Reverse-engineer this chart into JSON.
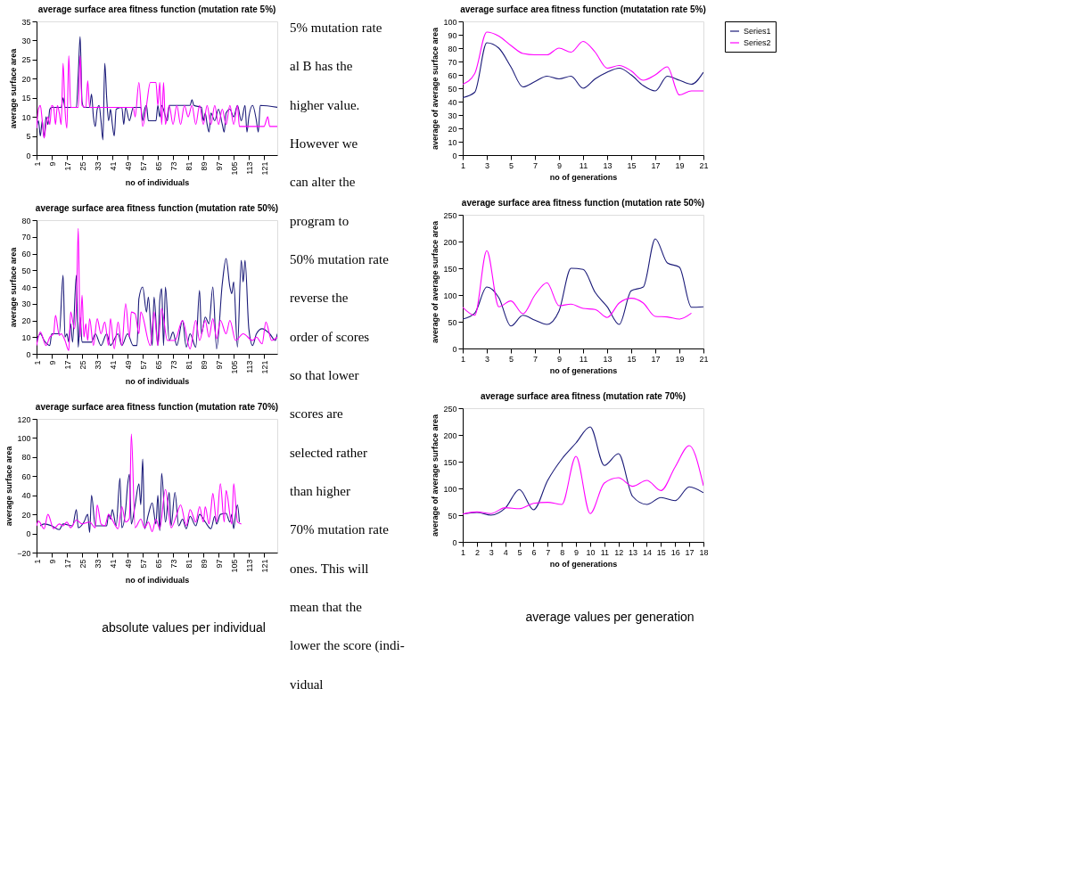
{
  "chart_data": [
    {
      "type": "line",
      "title": "average surface area fitness function (mutation rate 5%)",
      "xlabel": "no of individuals",
      "ylabel": "average surface area",
      "xlim": [
        1,
        128
      ],
      "xticks": [
        1,
        9,
        17,
        25,
        33,
        41,
        49,
        57,
        65,
        73,
        81,
        89,
        97,
        105,
        113,
        121
      ],
      "ylim": [
        0,
        35
      ],
      "yticks": [
        0,
        5,
        10,
        15,
        20,
        25,
        30,
        35
      ],
      "grid": false,
      "legend": "right",
      "series": [
        {
          "name": "Series1",
          "color": "#1a1a78",
          "x": [
            1,
            2,
            3,
            4,
            5,
            6,
            7,
            8,
            9,
            14,
            15,
            16,
            22,
            23,
            24,
            25,
            26,
            29,
            30,
            31,
            32,
            33,
            34,
            35,
            36,
            37,
            38,
            39,
            40,
            41,
            42,
            43,
            46,
            47,
            48,
            50,
            52,
            56,
            57,
            58,
            59,
            60,
            64,
            65,
            66,
            67,
            70,
            71,
            82,
            83,
            84,
            88,
            89,
            90,
            91,
            92,
            93,
            95,
            97,
            99,
            100,
            101,
            103,
            105,
            107,
            109,
            111,
            112,
            113,
            115,
            117,
            118,
            119,
            128
          ],
          "values": [
            7,
            9,
            5,
            9,
            4.5,
            10,
            8,
            12,
            12.5,
            12.5,
            15,
            12.5,
            12.5,
            21,
            31,
            14,
            12.5,
            12.5,
            16,
            10,
            7.5,
            12,
            13,
            9,
            4,
            24,
            15,
            9,
            12,
            8,
            5,
            12,
            12.5,
            8,
            12.5,
            9,
            12.5,
            12.5,
            9,
            12,
            13,
            9,
            9,
            13,
            10,
            13,
            9,
            13,
            13,
            14.5,
            13,
            12.5,
            9,
            11,
            8,
            6,
            11,
            9,
            12,
            8,
            6,
            11,
            12,
            10,
            13,
            9,
            13,
            6,
            10,
            13,
            9,
            6,
            13,
            12.5
          ]
        },
        {
          "name": "Series2",
          "color": "#ff00ff",
          "x": [
            1,
            2,
            3,
            4,
            5,
            6,
            7,
            8,
            9,
            10,
            11,
            12,
            13,
            14,
            15,
            16,
            17,
            18,
            19,
            23,
            24,
            25,
            27,
            28,
            29,
            52,
            53,
            55,
            57,
            59,
            61,
            64,
            65,
            66,
            67,
            68,
            69,
            71,
            73,
            75,
            77,
            79,
            81,
            83,
            85,
            87,
            89,
            91,
            93,
            95,
            97,
            99,
            101,
            103,
            105,
            107,
            108,
            121,
            123,
            124,
            128
          ],
          "values": [
            7,
            12,
            13,
            9,
            4.5,
            8,
            10,
            8,
            13,
            12.5,
            8,
            13,
            11,
            8,
            24,
            12,
            7,
            26,
            12.5,
            12.5,
            26,
            13,
            12.5,
            19.5,
            12.5,
            12.5,
            10,
            19,
            7.5,
            13,
            19,
            19,
            13,
            19,
            8,
            19,
            8,
            13,
            8,
            13,
            8,
            13,
            10,
            13,
            8,
            13,
            8,
            13,
            8,
            13,
            8,
            12,
            8,
            13,
            8,
            13,
            7.5,
            7.5,
            10,
            7.5,
            7.5
          ]
        }
      ]
    },
    {
      "type": "line",
      "title": "average surface area fitness function (mutatation rate 5%)",
      "xlabel": "no of generations",
      "ylabel": "average of average surface area",
      "x": [
        1,
        2,
        3,
        4,
        5,
        6,
        7,
        8,
        9,
        10,
        11,
        12,
        13,
        14,
        15,
        16,
        17,
        18,
        19,
        20,
        21
      ],
      "xlim": [
        1,
        21
      ],
      "xticks": [
        1,
        3,
        5,
        7,
        9,
        11,
        13,
        15,
        17,
        19,
        21
      ],
      "ylim": [
        0,
        100
      ],
      "yticks": [
        0,
        10,
        20,
        30,
        40,
        50,
        60,
        70,
        80,
        90,
        100
      ],
      "grid": false,
      "legend": "right",
      "series": [
        {
          "name": "Series1",
          "color": "#1a1a78",
          "values": [
            43,
            47,
            84,
            80,
            66,
            51,
            55,
            59,
            57,
            59,
            50,
            57,
            62,
            65,
            60,
            52,
            48,
            59,
            56,
            53,
            62
          ]
        },
        {
          "name": "Series2",
          "color": "#ff00ff",
          "values": [
            53,
            61,
            92,
            89,
            82,
            76,
            75,
            75,
            80,
            77,
            85,
            77,
            65,
            67,
            63,
            56,
            60,
            66,
            45,
            48,
            48
          ]
        }
      ]
    },
    {
      "type": "line",
      "title": "average surface area fitness function (mutation rate 50%)",
      "xlabel": "no of individuals",
      "ylabel": "average surface area",
      "xlim": [
        1,
        128
      ],
      "xticks": [
        1,
        9,
        17,
        25,
        33,
        41,
        49,
        57,
        65,
        73,
        81,
        89,
        97,
        105,
        113,
        121
      ],
      "ylim": [
        0,
        80
      ],
      "yticks": [
        0,
        10,
        20,
        30,
        40,
        50,
        60,
        70,
        80
      ],
      "grid": false,
      "legend": "right",
      "series": [
        {
          "name": "Series1",
          "color": "#1a1a78",
          "x": [
            1,
            3,
            5,
            8,
            9,
            13,
            15,
            16,
            17,
            18,
            19,
            20,
            22,
            23,
            24,
            25,
            30,
            32,
            35,
            38,
            40,
            44,
            46,
            49,
            52,
            54,
            55,
            57,
            59,
            60,
            62,
            63,
            65,
            66,
            67,
            68,
            69,
            71,
            73,
            75,
            78,
            80,
            82,
            85,
            87,
            88,
            90,
            92,
            94,
            96,
            99,
            101,
            103,
            104,
            105,
            107,
            109,
            110,
            111,
            113,
            115,
            117,
            120,
            124,
            127,
            128
          ],
          "values": [
            8,
            12,
            8,
            5,
            12,
            12,
            47,
            10,
            12,
            7,
            18,
            7,
            47,
            4,
            22,
            7,
            7,
            12,
            5,
            12,
            5,
            12,
            5,
            12,
            5,
            5,
            33,
            40,
            25,
            34,
            5,
            34,
            5,
            32,
            39,
            5,
            40,
            8,
            13,
            5,
            20,
            4,
            12,
            4,
            38,
            12,
            22,
            18,
            40,
            3,
            42,
            57,
            40,
            36,
            43,
            4,
            56,
            43,
            56,
            15,
            5,
            12,
            15,
            12,
            8,
            12
          ]
        },
        {
          "name": "Series2",
          "color": "#ff00ff",
          "x": [
            1,
            3,
            6,
            8,
            10,
            11,
            13,
            14,
            16,
            18,
            19,
            21,
            22,
            23,
            24,
            25,
            26,
            27,
            28,
            29,
            31,
            33,
            35,
            37,
            39,
            40,
            42,
            44,
            46,
            48,
            50,
            51,
            53,
            55,
            56,
            61,
            63,
            65,
            67,
            70,
            74,
            78,
            82,
            85,
            87,
            90,
            92,
            94,
            96,
            98,
            101,
            103,
            106,
            110,
            115,
            117,
            120,
            122,
            125,
            128
          ],
          "values": [
            5,
            13,
            5,
            10,
            12,
            23,
            11,
            12,
            8,
            2,
            25,
            15,
            28,
            75,
            10,
            35,
            10,
            18,
            8,
            21,
            5,
            21,
            12,
            19,
            5,
            21,
            3,
            19,
            5,
            30,
            10,
            25,
            24,
            12,
            25,
            5,
            25,
            5,
            27,
            8,
            8,
            20,
            3,
            20,
            8,
            20,
            10,
            21,
            9,
            20,
            12,
            20,
            8,
            12,
            8,
            10,
            6,
            19,
            8,
            10
          ]
        }
      ]
    },
    {
      "type": "line",
      "title": "average surface area fitness function (mutation rate 50%)",
      "xlabel": "no of generations",
      "ylabel": "average of average surface area",
      "x": [
        1,
        2,
        3,
        4,
        5,
        6,
        7,
        8,
        9,
        10,
        11,
        12,
        13,
        14,
        15,
        16,
        17,
        18,
        19,
        20,
        21
      ],
      "xlim": [
        1,
        21
      ],
      "xticks": [
        1,
        3,
        5,
        7,
        9,
        11,
        13,
        15,
        17,
        19,
        21
      ],
      "ylim": [
        0,
        250
      ],
      "yticks": [
        0,
        50,
        100,
        150,
        200,
        250
      ],
      "grid": false,
      "legend": "right",
      "series": [
        {
          "name": "Series1",
          "color": "#1a1a78",
          "values": [
            55,
            66,
            115,
            95,
            42,
            62,
            53,
            45,
            70,
            150,
            148,
            105,
            78,
            45,
            108,
            115,
            205,
            160,
            152,
            77,
            78
          ]
        },
        {
          "name": "Series2",
          "color": "#ff00ff",
          "values": [
            77,
            62,
            183,
            78,
            89,
            65,
            100,
            123,
            80,
            83,
            75,
            73,
            58,
            85,
            94,
            85,
            60,
            59,
            55,
            66,
            null
          ]
        }
      ]
    },
    {
      "type": "line",
      "title": "average surface area fitness function (mutation rate 70%)",
      "xlabel": "no of individuals",
      "ylabel": "average surface area",
      "xlim": [
        1,
        128
      ],
      "xticks": [
        1,
        9,
        17,
        25,
        33,
        41,
        49,
        57,
        65,
        73,
        81,
        89,
        97,
        105,
        113,
        121
      ],
      "ylim": [
        -20,
        120
      ],
      "yticks": [
        -20,
        0,
        20,
        40,
        60,
        80,
        100,
        120
      ],
      "grid": false,
      "legend": "right",
      "annotations": [
        "absolute values per individual"
      ],
      "series": [
        {
          "name": "Series1",
          "color": "#1a1a78",
          "x": [
            3,
            5,
            9,
            13,
            15,
            20,
            22,
            23,
            26,
            28,
            29,
            30,
            32,
            38,
            39,
            40,
            41,
            43,
            45,
            46,
            48,
            49,
            50,
            51,
            53,
            55,
            56,
            57,
            58,
            60,
            62,
            64,
            65,
            66,
            67,
            69,
            71,
            72,
            74,
            76,
            78,
            80,
            82,
            85,
            87,
            90,
            93,
            95,
            96,
            98,
            101,
            103,
            104,
            105,
            106,
            107,
            108
          ],
          "values": [
            8,
            10,
            8,
            4,
            10,
            8,
            25,
            6,
            12,
            20,
            1,
            40,
            8,
            8,
            20,
            15,
            25,
            8,
            58,
            6,
            25,
            50,
            62,
            10,
            30,
            52,
            30,
            78,
            5,
            20,
            32,
            10,
            40,
            3,
            63,
            12,
            43,
            8,
            43,
            8,
            15,
            5,
            18,
            8,
            20,
            12,
            5,
            18,
            10,
            20,
            21,
            12,
            20,
            5,
            20,
            30,
            12
          ]
        },
        {
          "name": "Series2",
          "color": "#ff00ff",
          "x": [
            1,
            2,
            5,
            7,
            10,
            13,
            15,
            17,
            19,
            22,
            25,
            29,
            32,
            33,
            35,
            37,
            39,
            41,
            44,
            46,
            48,
            50,
            51,
            53,
            56,
            58,
            60,
            62,
            64,
            66,
            69,
            72,
            75,
            77,
            80,
            82,
            85,
            87,
            89,
            90,
            92,
            93,
            94,
            96,
            98,
            100,
            101,
            104,
            105,
            107,
            109
          ],
          "values": [
            8,
            13,
            5,
            20,
            5,
            10,
            8,
            12,
            6,
            14,
            10,
            12,
            6,
            30,
            10,
            8,
            20,
            14,
            5,
            28,
            12,
            16,
            104,
            6,
            15,
            6,
            12,
            2,
            15,
            5,
            46,
            6,
            20,
            30,
            8,
            25,
            12,
            28,
            12,
            28,
            10,
            25,
            42,
            12,
            52,
            12,
            45,
            10,
            52,
            12,
            10
          ]
        }
      ]
    },
    {
      "type": "line",
      "title": "average surface area fitness (mutation rate 70%)",
      "xlabel": "no of generations",
      "ylabel": "average of average surface area",
      "x": [
        1,
        2,
        3,
        4,
        5,
        6,
        7,
        8,
        9,
        10,
        11,
        12,
        13,
        14,
        15,
        16,
        17,
        18
      ],
      "xlim": [
        1,
        18
      ],
      "xticks": [
        1,
        2,
        3,
        4,
        5,
        6,
        7,
        8,
        9,
        10,
        11,
        12,
        13,
        14,
        15,
        16,
        17,
        18
      ],
      "ylim": [
        0,
        250
      ],
      "yticks": [
        0,
        50,
        100,
        150,
        200,
        250
      ],
      "grid": false,
      "legend": "right",
      "annotations": [
        "average values per generation"
      ],
      "series": [
        {
          "name": "Series1",
          "color": "#1a1a78",
          "values": [
            52,
            55,
            50,
            63,
            98,
            60,
            115,
            155,
            185,
            215,
            143,
            165,
            85,
            70,
            83,
            77,
            103,
            92
          ]
        },
        {
          "name": "Series2",
          "color": "#ff00ff",
          "values": [
            52,
            56,
            53,
            64,
            62,
            72,
            74,
            70,
            160,
            53,
            110,
            120,
            104,
            115,
            96,
            140,
            180,
            105
          ]
        }
      ]
    },
    {
      "type": "other",
      "annotations": [
        "5% mutation rate",
        "al B has the",
        "higher value.",
        "However we",
        "can alter the",
        "program to",
        "50% mutation rate",
        "reverse the",
        "order of scores",
        "so that lower",
        "scores are",
        "selected rather",
        "than higher",
        "70% mutation rate",
        "ones. This will",
        "mean that the",
        "lower the score (indi-",
        "vidual"
      ]
    }
  ]
}
